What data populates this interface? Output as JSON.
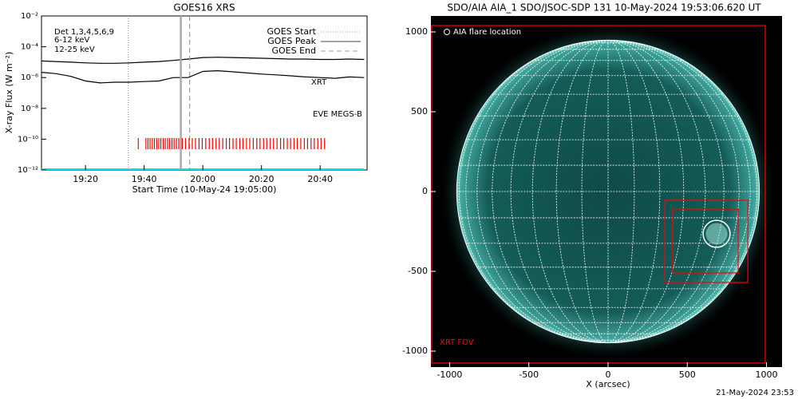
{
  "chart_data": [
    {
      "type": "line",
      "title": "GOES16 XRS",
      "xlabel": "Start Time (10-May-24 19:05:00)",
      "ylabel": "X-ray Flux (W m⁻²)",
      "log_y": true,
      "xlim": [
        0,
        111
      ],
      "xticks": [
        {
          "value": 15,
          "label": "19:20"
        },
        {
          "value": 35,
          "label": "19:40"
        },
        {
          "value": 55,
          "label": "20:00"
        },
        {
          "value": 75,
          "label": "20:20"
        },
        {
          "value": 95,
          "label": "20:40"
        }
      ],
      "ylim": [
        1e-12,
        0.01
      ],
      "yticks": [
        {
          "value": 0.01,
          "label": "10⁻²"
        },
        {
          "value": 0.0001,
          "label": "10⁻⁴"
        },
        {
          "value": 1e-06,
          "label": "10⁻⁶"
        },
        {
          "value": 1e-08,
          "label": "10⁻⁸"
        },
        {
          "value": 1e-10,
          "label": "10⁻¹⁰"
        },
        {
          "value": 1e-12,
          "label": "10⁻¹²"
        }
      ],
      "x": [
        0,
        5,
        10,
        15,
        20,
        25,
        30,
        35,
        40,
        45,
        50,
        55,
        60,
        65,
        70,
        75,
        80,
        85,
        90,
        95,
        100,
        105,
        110
      ],
      "series": [
        {
          "color": "#000000",
          "values": [
            1.2e-05,
            1.1e-05,
            1e-05,
            9e-06,
            8.5e-06,
            8.5e-06,
            9e-06,
            1e-05,
            1.1e-05,
            1.3e-05,
            1.6e-05,
            2e-05,
            2.1e-05,
            2e-05,
            1.9e-05,
            1.8e-05,
            1.7e-05,
            1.6e-05,
            1.6e-05,
            1.5e-05,
            1.5e-05,
            1.6e-05,
            1.5e-05
          ]
        },
        {
          "color": "#000000",
          "values": [
            2.2e-06,
            1.8e-06,
            1.2e-06,
            6e-07,
            4.5e-07,
            5e-07,
            5e-07,
            5.5e-07,
            6e-07,
            1e-06,
            1e-06,
            2.5e-06,
            2.8e-06,
            2.4e-06,
            2e-06,
            1.7e-06,
            1.5e-06,
            1.3e-06,
            1.1e-06,
            1e-06,
            9e-07,
            1.1e-06,
            1e-06
          ]
        },
        {
          "color": "#00e5ff",
          "values": [
            1.1e-12,
            1.1e-12,
            1.1e-12,
            1.1e-12,
            1.1e-12,
            1.1e-12,
            1.1e-12,
            1.1e-12,
            1.1e-12,
            1.1e-12,
            1.1e-12,
            1.1e-12,
            1.1e-12,
            1.1e-12,
            1.1e-12,
            1.1e-12,
            1.1e-12,
            1.1e-12,
            1.1e-12,
            1.1e-12,
            1.1e-12,
            1.1e-12,
            1.1e-12
          ]
        }
      ],
      "markers": [
        {
          "name": "GOES Start",
          "x": 29.6,
          "style": "dotted",
          "color": "#999999"
        },
        {
          "name": "GOES Peak",
          "x": 47.5,
          "style": "solid",
          "color": "#aaaaaa"
        },
        {
          "name": "GOES End",
          "x": 50.5,
          "style": "dashed",
          "color": "#999999"
        }
      ],
      "xrt_obs_color": "#ff0000",
      "xrt_obs": [
        33.0,
        35.6,
        36.3,
        37.0,
        37.8,
        38.5,
        39.3,
        40.0,
        40.7,
        41.5,
        42.2,
        43.0,
        43.7,
        44.5,
        45.2,
        46.0,
        46.8,
        48.0,
        49.1,
        50.3,
        51.4,
        52.5,
        53.7,
        54.8,
        56.0,
        57.2,
        58.3,
        59.5,
        60.6,
        61.8,
        63.0,
        64.1,
        65.3,
        66.4,
        67.6,
        68.7,
        69.9,
        71.0,
        72.2,
        73.4,
        74.5,
        75.7,
        76.8,
        78.0,
        79.1,
        80.3,
        81.5,
        82.6,
        83.8,
        84.9,
        86.1,
        87.2,
        88.4,
        89.6,
        90.7,
        91.9,
        93.0,
        94.2,
        95.3,
        96.5
      ],
      "annotations": [
        {
          "text": "Det 1,3,4,5,6,9",
          "color": "#000000"
        },
        {
          "text": "6-12 keV",
          "color": "#e000e0"
        },
        {
          "text": "12-25 keV",
          "color": "#00cc00"
        },
        {
          "text": "XRT",
          "color": "#ff0000"
        },
        {
          "text": "EVE MEGS-B",
          "color": "#00e5ff"
        }
      ]
    },
    {
      "type": "image",
      "title": "SDO/AIA AIA_1 SDO/JSOC-SDP 131 10-May-2024 19:53:06.620 UT",
      "xlabel": "X (arcsec)",
      "xlim": [
        -1118,
        1098
      ],
      "xticks": [
        -1000,
        -500,
        0,
        500,
        1000
      ],
      "ylim": [
        -1100,
        1100
      ],
      "yticks": [
        -1000,
        -500,
        0,
        500,
        1000
      ],
      "regions": [
        {
          "label": "XRT FOV",
          "x": [
            -1113,
            992
          ],
          "y": [
            -1075,
            1040
          ],
          "color": "#ff0000"
        },
        {
          "x": [
            358,
            882
          ],
          "y": [
            -570,
            -55
          ],
          "color": "#ff0000"
        },
        {
          "x": [
            408,
            821
          ],
          "y": [
            -510,
            -110
          ],
          "color": "#ff0000"
        }
      ],
      "flare": {
        "label": "AIA flare location",
        "x": 685,
        "y": -265,
        "r": 85
      },
      "footer": "21-May-2024 23:53"
    }
  ]
}
